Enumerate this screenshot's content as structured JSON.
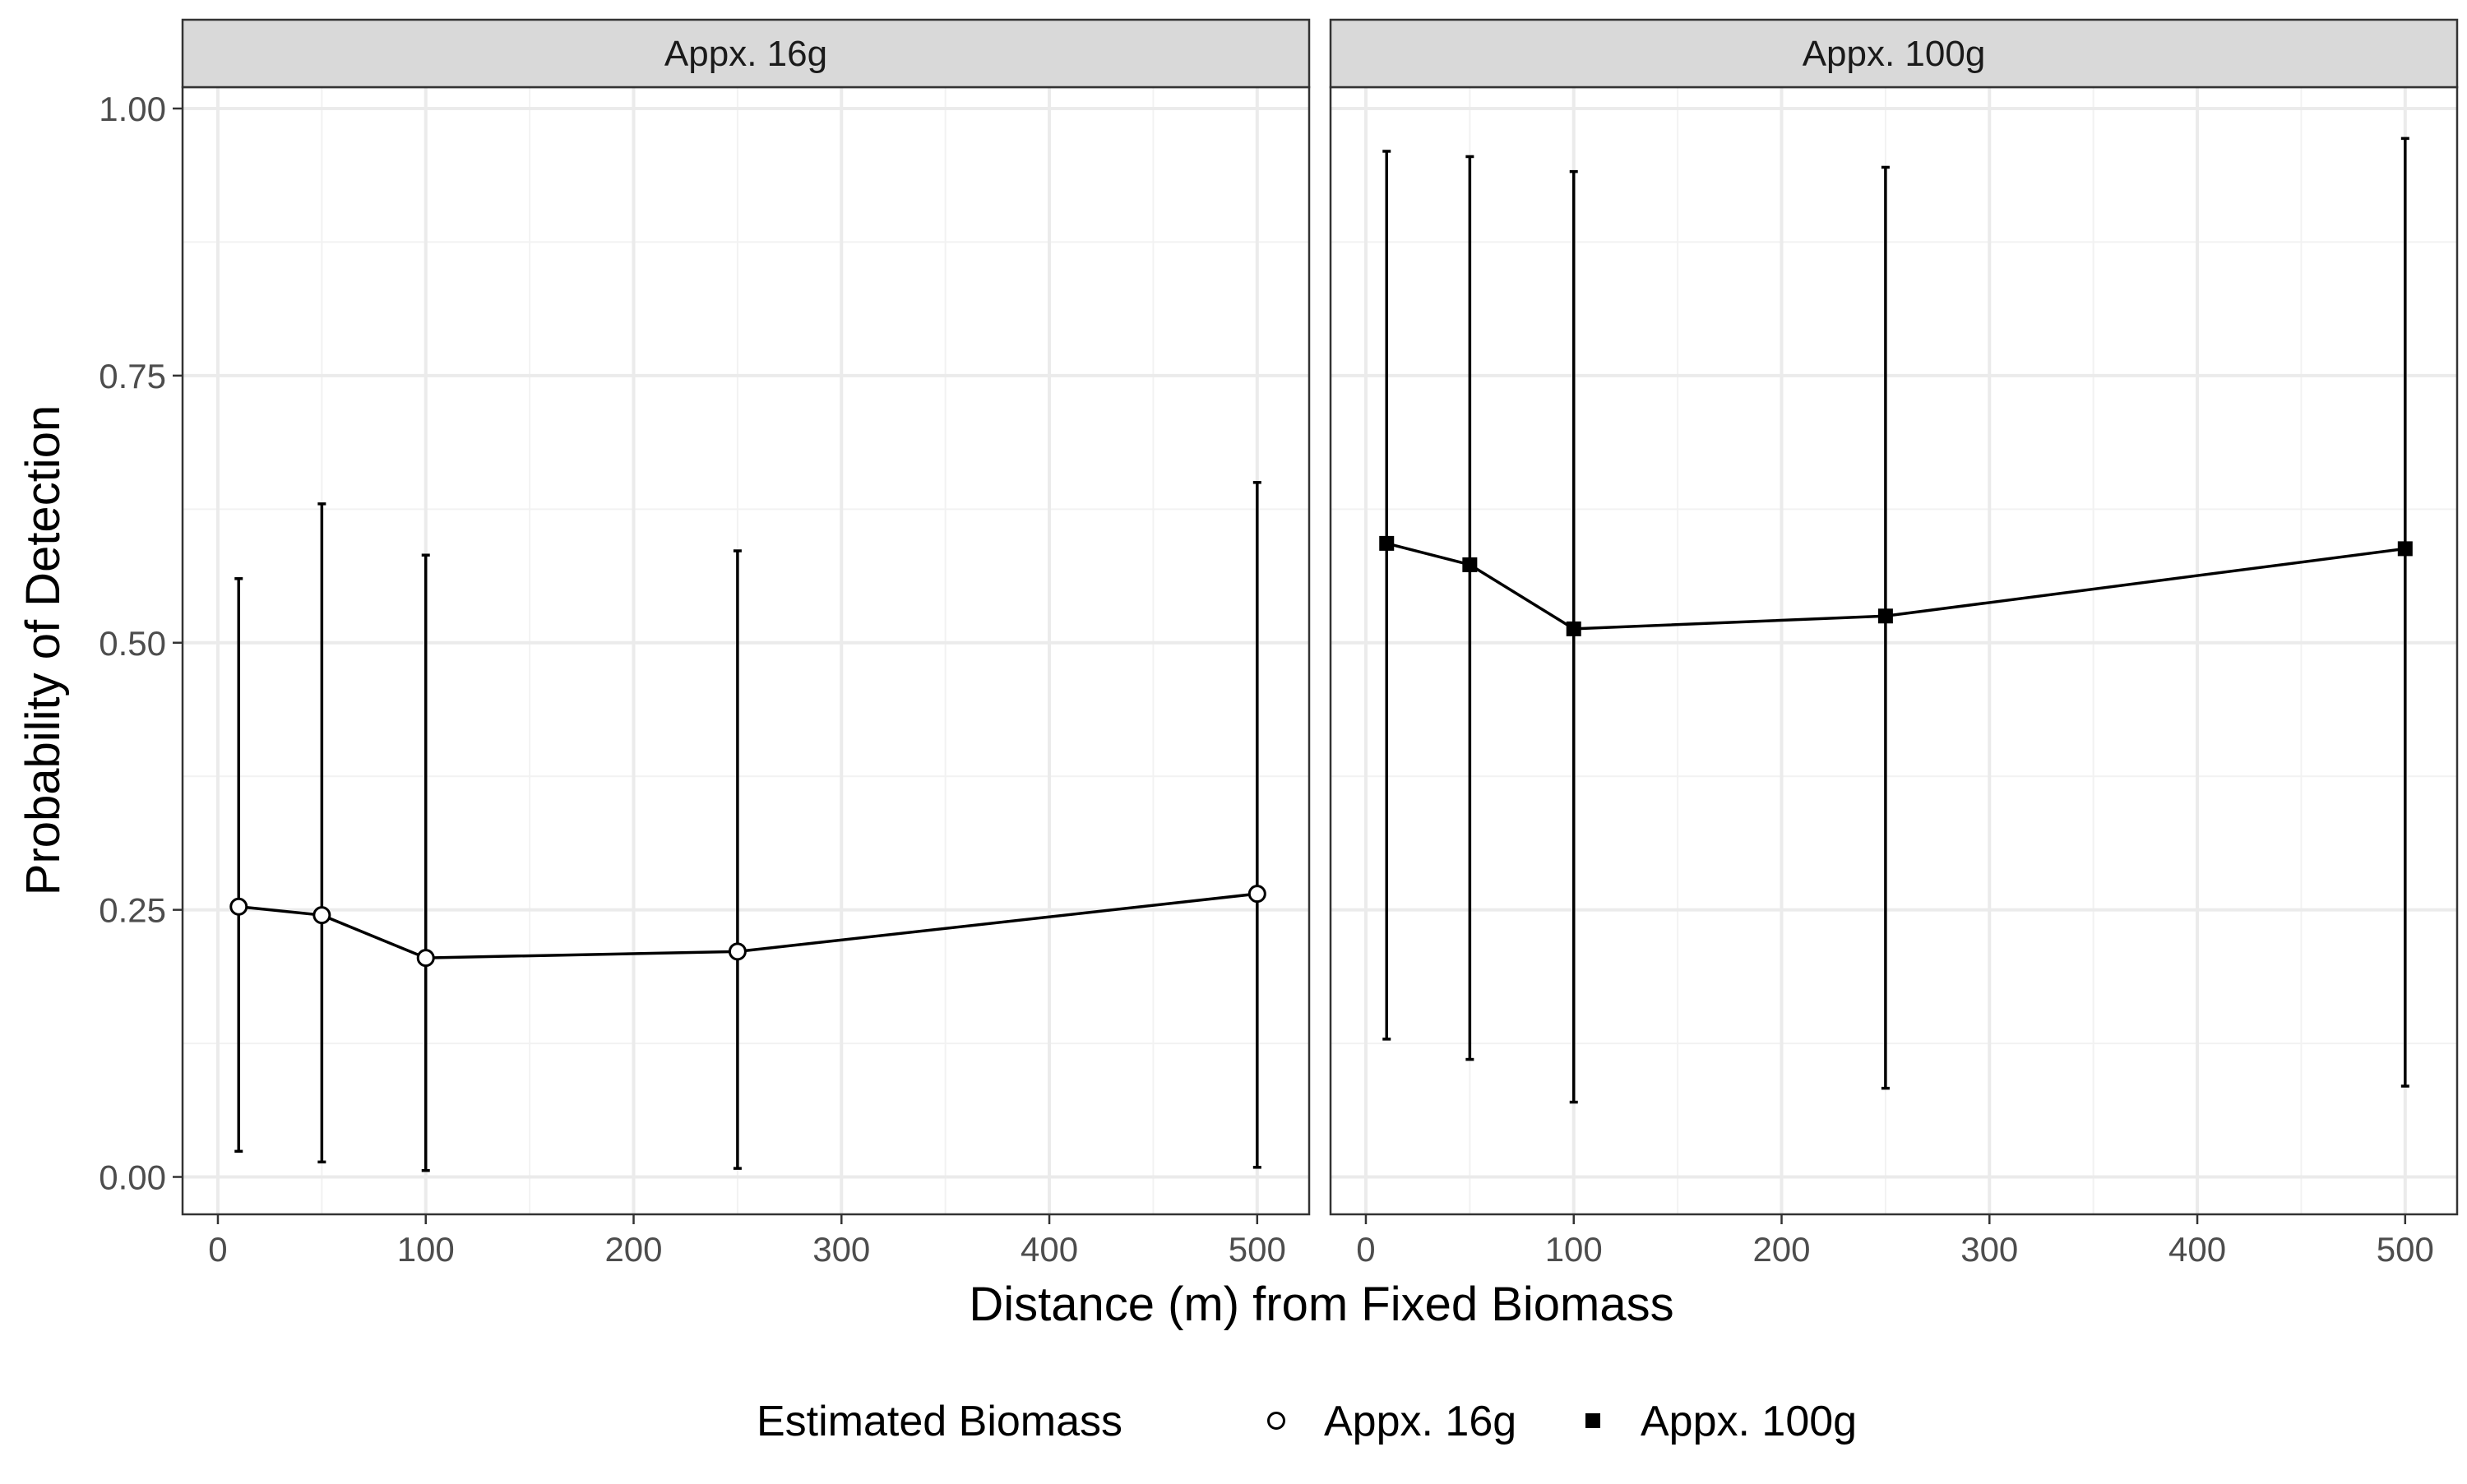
{
  "chart_data": {
    "type": "line",
    "xlabel": "Distance (m) from Fixed Biomass",
    "ylabel": "Probability of Detection",
    "xlim": [
      -17,
      525
    ],
    "ylim": [
      -0.035,
      1.02
    ],
    "x_ticks": [
      0,
      100,
      200,
      300,
      400,
      500
    ],
    "y_ticks": [
      0.0,
      0.25,
      0.5,
      0.75,
      1.0
    ],
    "x_tick_labels": [
      "0",
      "100",
      "200",
      "300",
      "400",
      "500"
    ],
    "y_tick_labels": [
      "0.00",
      "0.25",
      "0.50",
      "0.75",
      "1.00"
    ],
    "grid": true,
    "legend": {
      "title": "Estimated Biomass",
      "position": "bottom",
      "items": [
        {
          "label": "Appx. 16g",
          "shape": "open-circle"
        },
        {
          "label": "Appx. 100g",
          "shape": "filled-square"
        }
      ]
    },
    "panels": [
      {
        "label": "Appx. 16g",
        "shape": "open-circle",
        "x": [
          10,
          50,
          100,
          250,
          500
        ],
        "y": [
          0.253,
          0.245,
          0.205,
          0.211,
          0.265
        ],
        "lower": [
          0.024,
          0.014,
          0.006,
          0.008,
          0.009
        ],
        "upper": [
          0.56,
          0.63,
          0.582,
          0.586,
          0.65
        ]
      },
      {
        "label": "Appx. 100g",
        "shape": "filled-square",
        "x": [
          10,
          50,
          100,
          250,
          500
        ],
        "y": [
          0.593,
          0.573,
          0.513,
          0.525,
          0.588
        ],
        "lower": [
          0.129,
          0.11,
          0.07,
          0.083,
          0.085
        ],
        "upper": [
          0.96,
          0.955,
          0.941,
          0.945,
          0.972
        ]
      }
    ]
  }
}
